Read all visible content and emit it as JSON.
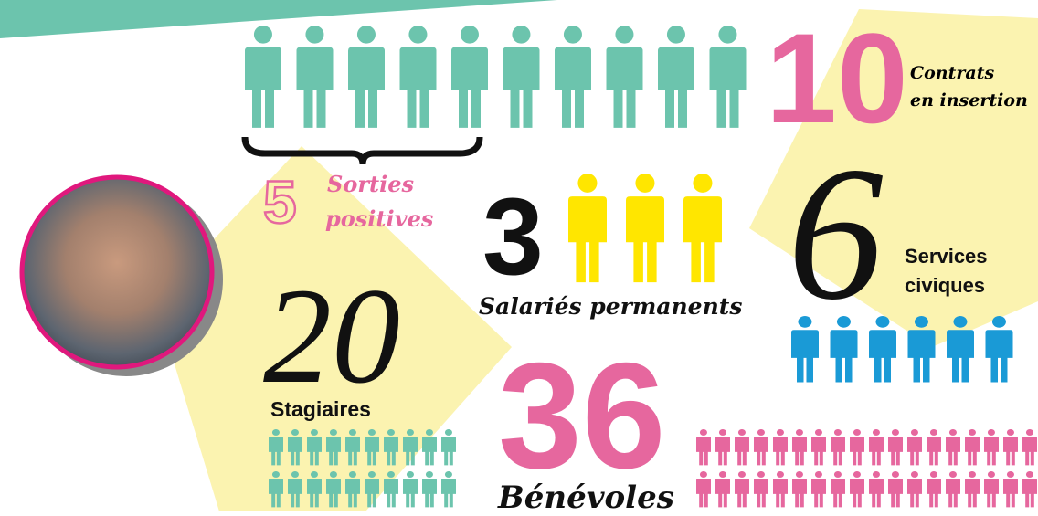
{
  "contrats": {
    "value": 10,
    "label": [
      "Contrats",
      "en insertion"
    ]
  },
  "sorties": {
    "value": 5,
    "label": [
      "Sorties",
      "positives"
    ]
  },
  "salaries": {
    "value": 3,
    "label": "Salariés permanents"
  },
  "services": {
    "value": 6,
    "label": [
      "Services",
      "civiques"
    ]
  },
  "stagiaires": {
    "value": 20,
    "label": "Stagiaires"
  },
  "benevoles": {
    "value": 36,
    "label": "Bénévoles"
  }
}
